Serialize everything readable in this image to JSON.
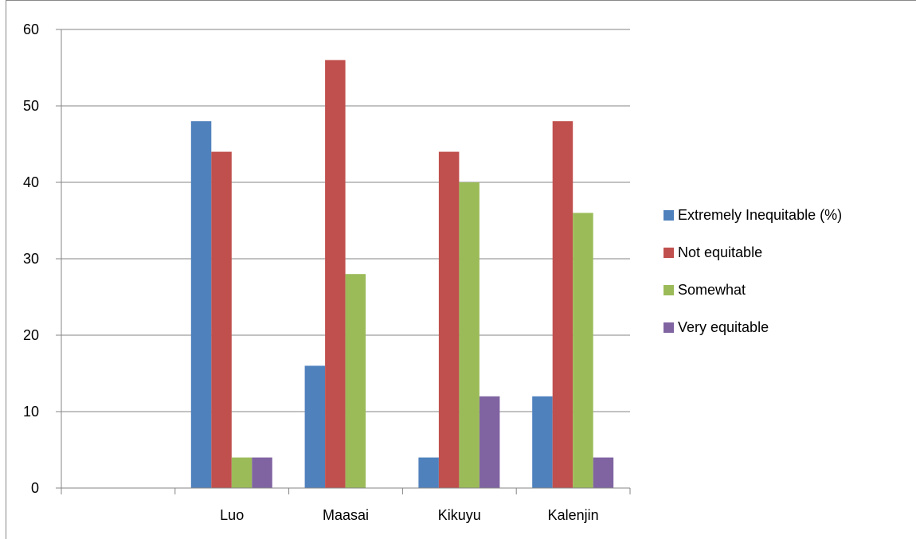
{
  "chart_data": {
    "type": "bar",
    "title": "",
    "xlabel": "",
    "ylabel": "",
    "ylim": [
      0,
      60
    ],
    "yticks": [
      0,
      10,
      20,
      30,
      40,
      50,
      60
    ],
    "categories": [
      "",
      "Luo",
      "Maasai",
      "Kikuyu",
      "Kalenjin"
    ],
    "series": [
      {
        "name": "Extremely Inequitable (%)",
        "color": "#4F81BD",
        "values": [
          null,
          48,
          16,
          4,
          12
        ]
      },
      {
        "name": "Not equitable",
        "color": "#C0504D",
        "values": [
          null,
          44,
          56,
          44,
          48
        ]
      },
      {
        "name": "Somewhat",
        "color": "#9BBB59",
        "values": [
          null,
          4,
          28,
          40,
          36
        ]
      },
      {
        "name": "Very equitable",
        "color": "#8064A2",
        "values": [
          null,
          4,
          null,
          12,
          4
        ]
      }
    ],
    "grid": true,
    "legend_position": "right"
  }
}
